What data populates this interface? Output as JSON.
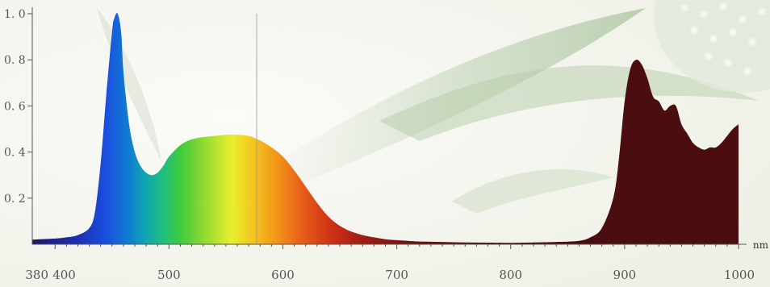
{
  "chart_data": {
    "type": "area",
    "title": "",
    "xlabel": "",
    "ylabel": "",
    "unit": "nm",
    "xlim": [
      380,
      1000
    ],
    "ylim": [
      0,
      1.0
    ],
    "x_ticks": [
      380,
      400,
      500,
      600,
      700,
      800,
      900,
      1000
    ],
    "y_ticks": [
      0.2,
      0.4,
      0.6,
      0.8,
      1.0
    ],
    "x_tick_labels": [
      "380",
      "400",
      "500",
      "600",
      "700",
      "800",
      "900",
      "1000"
    ],
    "y_tick_labels": [
      "0. 2",
      "0. 4",
      "0. 6",
      "0. 8",
      "1. 0"
    ],
    "grid": false,
    "reference_line_x": 577,
    "series": [
      {
        "color_mode": "visible-spectrum",
        "x": [
          380,
          400,
          410,
          420,
          430,
          435,
          440,
          445,
          450,
          452,
          455,
          458,
          460,
          465,
          470,
          475,
          480,
          485,
          490,
          495,
          500,
          510,
          520,
          530,
          540,
          550,
          560,
          570,
          580,
          590,
          600,
          610,
          620,
          630,
          640,
          650,
          660,
          670,
          680,
          690,
          700,
          720,
          740,
          760,
          780,
          800
        ],
        "y": [
          0.02,
          0.025,
          0.03,
          0.04,
          0.07,
          0.14,
          0.35,
          0.65,
          0.92,
          0.98,
          1.0,
          0.92,
          0.75,
          0.52,
          0.4,
          0.34,
          0.31,
          0.3,
          0.31,
          0.34,
          0.38,
          0.43,
          0.455,
          0.465,
          0.47,
          0.475,
          0.475,
          0.47,
          0.45,
          0.42,
          0.38,
          0.32,
          0.25,
          0.18,
          0.12,
          0.08,
          0.055,
          0.04,
          0.03,
          0.022,
          0.018,
          0.012,
          0.01,
          0.008,
          0.007,
          0.006
        ]
      },
      {
        "color": "#4a0d10",
        "x": [
          800,
          820,
          840,
          860,
          870,
          880,
          890,
          895,
          900,
          905,
          910,
          915,
          920,
          925,
          930,
          935,
          940,
          945,
          950,
          955,
          960,
          965,
          970,
          975,
          980,
          985,
          990,
          995,
          1000
        ],
        "y": [
          0.006,
          0.008,
          0.01,
          0.015,
          0.03,
          0.07,
          0.2,
          0.37,
          0.62,
          0.76,
          0.8,
          0.78,
          0.72,
          0.64,
          0.62,
          0.58,
          0.6,
          0.6,
          0.52,
          0.48,
          0.44,
          0.42,
          0.41,
          0.42,
          0.42,
          0.44,
          0.47,
          0.5,
          0.52
        ]
      }
    ],
    "colors": {
      "axis": "#555555",
      "tick_label": "#555555",
      "ir_fill": "#4a0d10",
      "background": "#f4f5ef"
    }
  }
}
